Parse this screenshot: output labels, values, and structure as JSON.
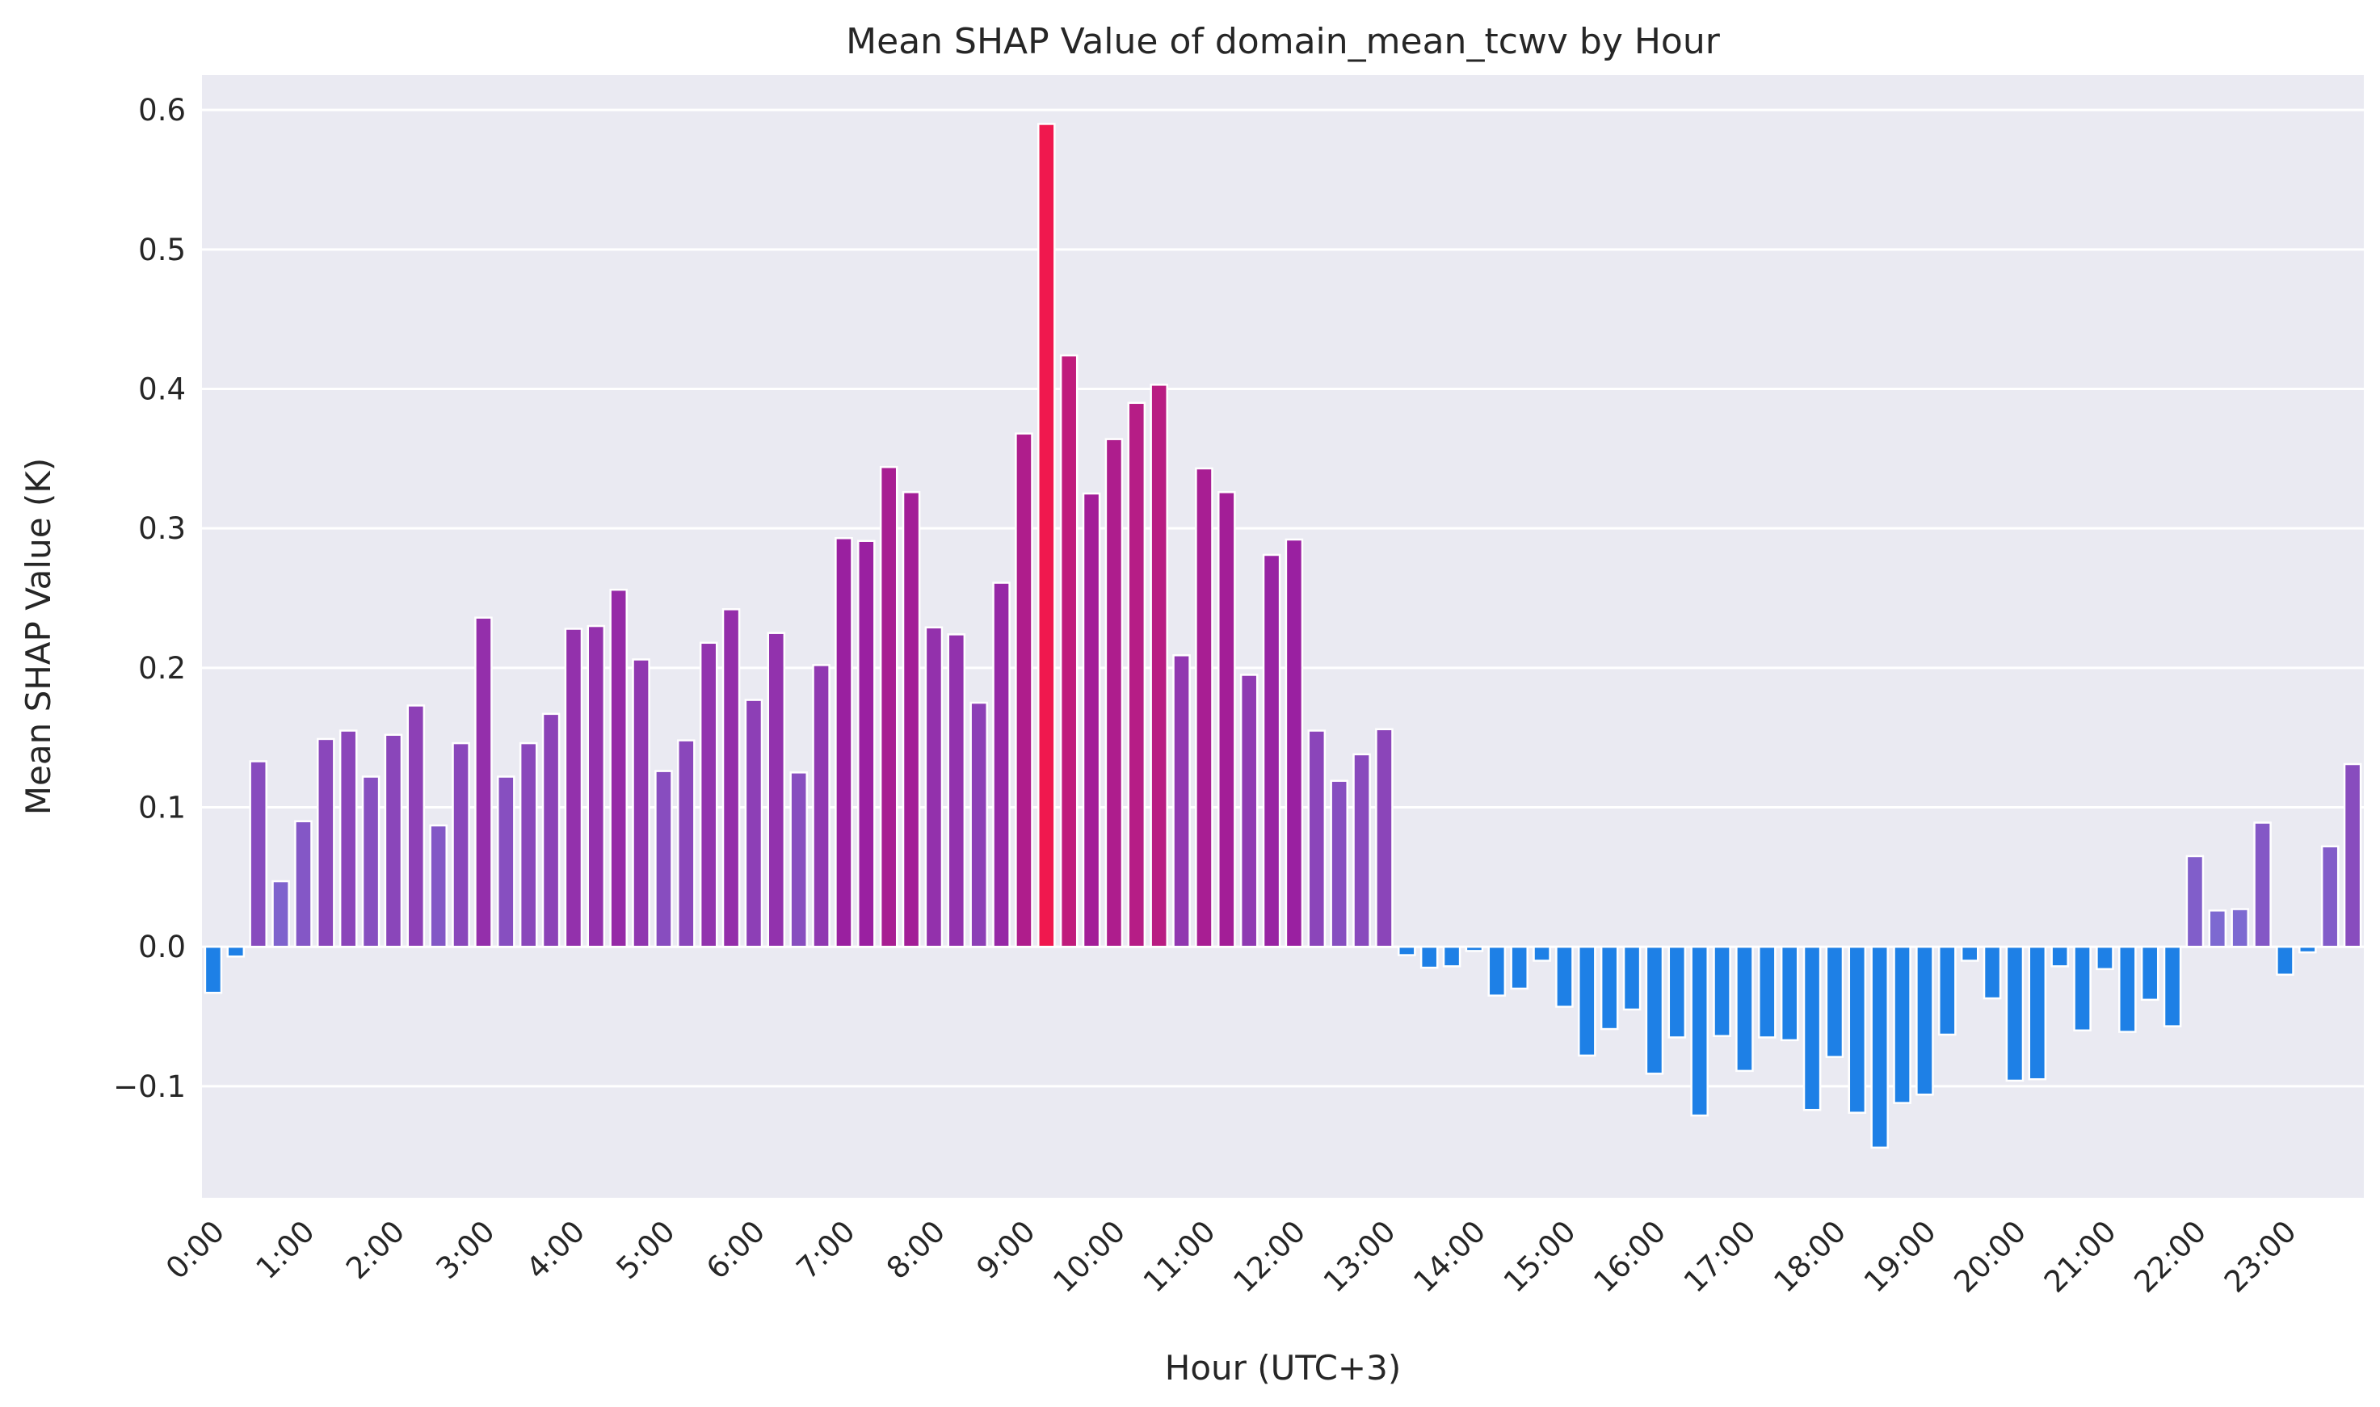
{
  "chart_data": {
    "type": "bar",
    "title": "Mean SHAP Value of domain_mean_tcwv by Hour",
    "xlabel": "Hour (UTC+3)",
    "ylabel": "Mean SHAP Value (K)",
    "ylim": [
      -0.18,
      0.625
    ],
    "yticks": [
      -0.1,
      0.0,
      0.1,
      0.2,
      0.3,
      0.4,
      0.5,
      0.6
    ],
    "ytick_labels": [
      "−0.1",
      "0.0",
      "0.1",
      "0.2",
      "0.3",
      "0.4",
      "0.5",
      "0.6"
    ],
    "bars_per_hour": 4,
    "xtick_labels": [
      "0:00",
      "1:00",
      "2:00",
      "3:00",
      "4:00",
      "5:00",
      "6:00",
      "7:00",
      "8:00",
      "9:00",
      "10:00",
      "11:00",
      "12:00",
      "13:00",
      "14:00",
      "15:00",
      "16:00",
      "17:00",
      "18:00",
      "19:00",
      "20:00",
      "21:00",
      "22:00",
      "23:00"
    ],
    "grid": true,
    "color_scale": {
      "low": "#1e80e6",
      "mid": "#9a1fa0",
      "high": "#f0184e",
      "low_value": 0.0,
      "high_value": 0.59
    },
    "values": [
      -0.033,
      -0.007,
      0.133,
      0.047,
      0.09,
      0.149,
      0.155,
      0.122,
      0.152,
      0.173,
      0.087,
      0.146,
      0.236,
      0.122,
      0.146,
      0.167,
      0.228,
      0.23,
      0.256,
      0.206,
      0.126,
      0.148,
      0.218,
      0.242,
      0.177,
      0.225,
      0.125,
      0.202,
      0.293,
      0.291,
      0.344,
      0.326,
      0.229,
      0.224,
      0.175,
      0.261,
      0.368,
      0.59,
      0.424,
      0.325,
      0.364,
      0.39,
      0.403,
      0.209,
      0.343,
      0.326,
      0.195,
      0.281,
      0.292,
      0.155,
      0.119,
      0.138,
      0.156,
      -0.006,
      -0.015,
      -0.014,
      -0.003,
      -0.035,
      -0.03,
      -0.01,
      -0.043,
      -0.078,
      -0.059,
      -0.045,
      -0.091,
      -0.065,
      -0.121,
      -0.064,
      -0.089,
      -0.065,
      -0.067,
      -0.117,
      -0.079,
      -0.119,
      -0.144,
      -0.112,
      -0.106,
      -0.063,
      -0.01,
      -0.037,
      -0.096,
      -0.095,
      -0.014,
      -0.06,
      -0.016,
      -0.061,
      -0.038,
      -0.057,
      0.065,
      0.026,
      0.027,
      0.089,
      -0.02,
      -0.004,
      0.072,
      0.131
    ]
  }
}
